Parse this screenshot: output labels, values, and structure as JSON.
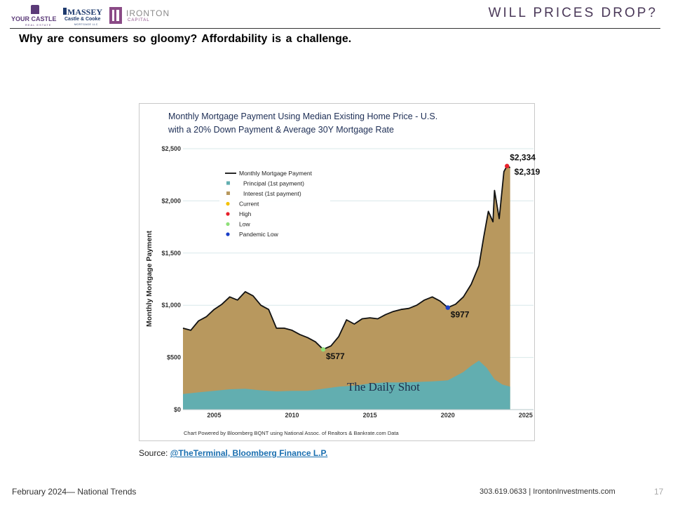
{
  "header": {
    "title": "WILL PRICES DROP?",
    "subtitle": "Why are consumers so gloomy?  Affordability is a challenge.",
    "logos": {
      "your_castle": {
        "name": "YOUR CASTLE",
        "sub": "REAL ESTATE"
      },
      "massey": {
        "name": "MASSEY",
        "line2": "Castle & Cooke",
        "line3": "MORTGAGE LLC"
      },
      "ironton": {
        "name": "IRONTON",
        "sub": "CAPITAL"
      }
    }
  },
  "chart_data": {
    "type": "area",
    "title_line1": "Monthly Mortgage Payment Using Median Existing Home Price - U.S.",
    "title_line2": "with a 20% Down Payment & Average 30Y Mortgage Rate",
    "ylabel": "Monthly Mortgage Payment",
    "xlim": [
      2003,
      2025.5
    ],
    "ylim": [
      0,
      2500
    ],
    "yticks": [
      "$0",
      "$500",
      "$1,000",
      "$1,500",
      "$2,000",
      "$2,500"
    ],
    "ytick_values": [
      0,
      500,
      1000,
      1500,
      2000,
      2500
    ],
    "xticks": [
      "2005",
      "2010",
      "2015",
      "2020",
      "2025"
    ],
    "xtick_values": [
      2005,
      2010,
      2015,
      2020,
      2025
    ],
    "grid": true,
    "legend_position": "top-left",
    "colors": {
      "payment": "#111111",
      "principal": "#62aeb0",
      "interest": "#b8985e",
      "current": "#f5c200",
      "high": "#e8202a",
      "low": "#8fe07a",
      "pandemic_low": "#1a3fc8"
    },
    "series": [
      {
        "name": "Monthly Mortgage Payment",
        "x": [
          2003.0,
          2003.5,
          2004.0,
          2004.5,
          2005.0,
          2005.5,
          2006.0,
          2006.5,
          2007.0,
          2007.5,
          2008.0,
          2008.5,
          2009.0,
          2009.5,
          2010.0,
          2010.5,
          2011.0,
          2011.5,
          2012.0,
          2012.5,
          2013.0,
          2013.5,
          2014.0,
          2014.5,
          2015.0,
          2015.5,
          2016.0,
          2016.5,
          2017.0,
          2017.5,
          2018.0,
          2018.5,
          2019.0,
          2019.5,
          2020.0,
          2020.5,
          2021.0,
          2021.5,
          2022.0,
          2022.3,
          2022.6,
          2022.9,
          2023.0,
          2023.3,
          2023.6,
          2023.8,
          2024.0
        ],
        "values": [
          780,
          760,
          850,
          890,
          960,
          1010,
          1080,
          1050,
          1130,
          1090,
          1000,
          960,
          780,
          780,
          760,
          720,
          690,
          650,
          577,
          610,
          700,
          860,
          820,
          870,
          880,
          870,
          910,
          940,
          960,
          970,
          1000,
          1050,
          1080,
          1040,
          977,
          1010,
          1080,
          1200,
          1380,
          1650,
          1900,
          1800,
          2100,
          1830,
          2280,
          2334,
          2319
        ]
      },
      {
        "name": "Principal (1st payment)",
        "x": [
          2003.0,
          2004.0,
          2005.0,
          2006.0,
          2007.0,
          2008.0,
          2009.0,
          2010.0,
          2011.0,
          2012.0,
          2013.0,
          2014.0,
          2015.0,
          2016.0,
          2017.0,
          2018.0,
          2019.0,
          2020.0,
          2021.0,
          2021.5,
          2022.0,
          2022.5,
          2023.0,
          2023.5,
          2024.0
        ],
        "values": [
          150,
          165,
          180,
          195,
          200,
          185,
          175,
          180,
          180,
          200,
          220,
          230,
          250,
          260,
          260,
          265,
          270,
          280,
          360,
          420,
          470,
          400,
          290,
          240,
          220
        ]
      }
    ],
    "legend": [
      "Monthly Mortgage Payment",
      "Principal (1st payment)",
      "Interest (1st payment)",
      "Current",
      "High",
      "Low",
      "Pandemic Low"
    ],
    "points": [
      {
        "name": "High",
        "x": 2023.8,
        "y": 2334,
        "label": "$2,334"
      },
      {
        "name": "Current",
        "x": 2024.0,
        "y": 2319,
        "label": "$2,319"
      },
      {
        "name": "Low",
        "x": 2012.0,
        "y": 577,
        "label": "$577"
      },
      {
        "name": "Pandemic Low",
        "x": 2020.0,
        "y": 977,
        "label": "$977"
      }
    ],
    "watermark": "The Daily Shot",
    "footnote": "Chart Powered by Bloomberg BQNT using National Assoc. of Realtors & Bankrate.com Data"
  },
  "source": {
    "prefix": "Source: ",
    "link": "@TheTerminal, Bloomberg Finance L.P."
  },
  "footer": {
    "left": "February 2024— National Trends",
    "contact": "303.619.0633 | IrontonInvestments.com",
    "page": "17"
  }
}
